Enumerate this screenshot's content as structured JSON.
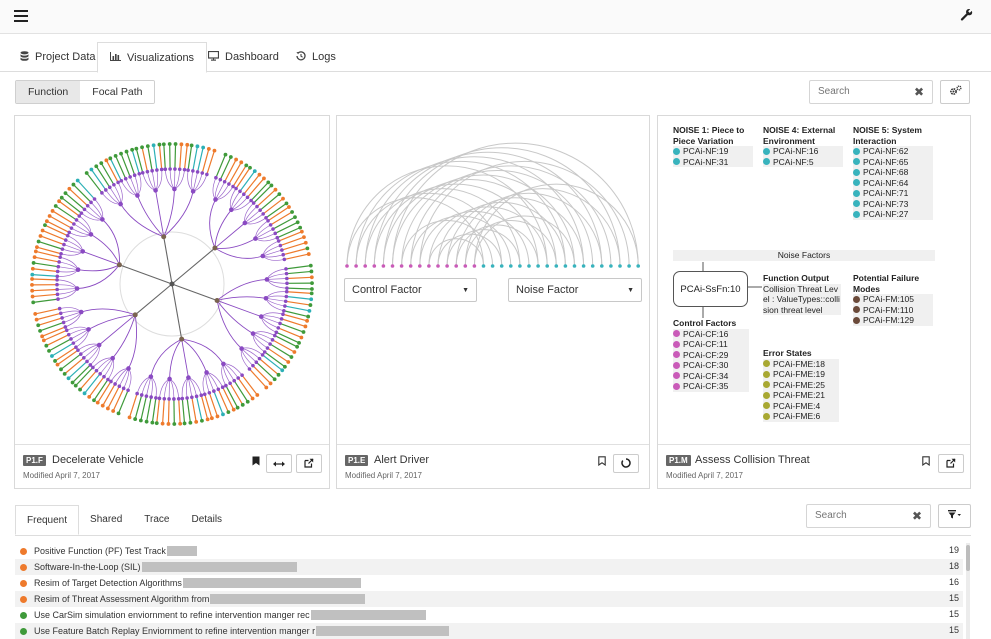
{
  "header": {
    "menu_icon": "hamburger-icon",
    "settings_icon": "wrench-icon"
  },
  "tabs": [
    {
      "label": "Project Data",
      "icon": "database-icon"
    },
    {
      "label": "Visualizations",
      "icon": "bar-chart-icon",
      "active": true
    },
    {
      "label": "Dashboard",
      "icon": "monitor-icon"
    },
    {
      "label": "Logs",
      "icon": "history-icon"
    }
  ],
  "view_toggle": {
    "function_label": "Function",
    "focal_label": "Focal Path",
    "selected": "Function"
  },
  "top_search": {
    "placeholder": "Search"
  },
  "panels": [
    {
      "id": "P1.F",
      "title": "Decelerate Vehicle",
      "modified": "Modified April 7, 2017"
    },
    {
      "id": "P1.E",
      "title": "Alert Driver",
      "modified": "Modified April 7, 2017"
    },
    {
      "id": "P1.M",
      "title": "Assess Collision Threat",
      "modified": "Modified April 7, 2017"
    }
  ],
  "arc_controls": {
    "left_dropdown": "Control Factor",
    "right_dropdown": "Noise Factor"
  },
  "fm": {
    "noise1": {
      "title": "NOISE 1: Piece to Piece Variation",
      "items": [
        "PCAi-NF:19",
        "PCAi-NF:31"
      ]
    },
    "noise4": {
      "title": "NOISE 4: External Environment",
      "items": [
        "PCAi-NF:16",
        "PCAi-NF:5"
      ]
    },
    "noise5": {
      "title": "NOISE 5: System Interaction",
      "items": [
        "PCAi-NF:62",
        "PCAi-NF:65",
        "PCAi-NF:68",
        "PCAi-NF:64",
        "PCAi-NF:71",
        "PCAi-NF:73",
        "PCAi-NF:27"
      ]
    },
    "noise_factors_label": "Noise Factors",
    "center_node": "PCAi-SsFn:10",
    "function_output": {
      "title": "Function Output",
      "text": "Collision Threat Level : ValueTypes::collision threat level"
    },
    "potential_failure": {
      "title": "Potential Failure Modes",
      "items": [
        "PCAi-FM:105",
        "PCAi-FM:110",
        "PCAi-FM:129"
      ]
    },
    "control_factors": {
      "title": "Control Factors",
      "items": [
        "PCAi-CF:16",
        "PCAi-CF:11",
        "PCAi-CF:29",
        "PCAi-CF:30",
        "PCAi-CF:34",
        "PCAi-CF:35"
      ]
    },
    "error_states": {
      "title": "Error States",
      "items": [
        "PCAi-FME:18",
        "PCAi-FME:19",
        "PCAi-FME:25",
        "PCAi-FME:21",
        "PCAi-FME:4",
        "PCAi-FME:6"
      ]
    }
  },
  "colors": {
    "noise": "#38b3bd",
    "failure": "#6b4a3a",
    "control": "#c95bb8",
    "error": "#a8a832",
    "orange": "#ee7a2c",
    "green": "#3f9a3a",
    "purple": "#8a4ac2",
    "teal": "#2cb0b6",
    "hub": "#7a6450"
  },
  "bottom_tabs": [
    "Frequent",
    "Shared",
    "Trace",
    "Details"
  ],
  "bottom_search": {
    "placeholder": "Search"
  },
  "list": [
    {
      "text": "Positive Function (PF) Test Track",
      "count": "19",
      "color": "#ee7a2c",
      "redact": 30
    },
    {
      "text": "Software-In-the-Loop (SIL)",
      "count": "18",
      "color": "#ee7a2c",
      "redact": 155
    },
    {
      "text": "Resim of Target Detection Algorithms",
      "count": "16",
      "color": "#ee7a2c",
      "redact": 178
    },
    {
      "text": "Resim of Threat Assessment Algorithm from",
      "count": "15",
      "color": "#ee7a2c",
      "redact": 155
    },
    {
      "text": "Use CarSim simulation enviornment to refine intervention manger rec",
      "count": "15",
      "color": "#3f9a3a",
      "redact": 115
    },
    {
      "text": "Use Feature Batch Replay Enviornment to refine intervention manger r",
      "count": "15",
      "color": "#3f9a3a",
      "redact": 133
    }
  ]
}
